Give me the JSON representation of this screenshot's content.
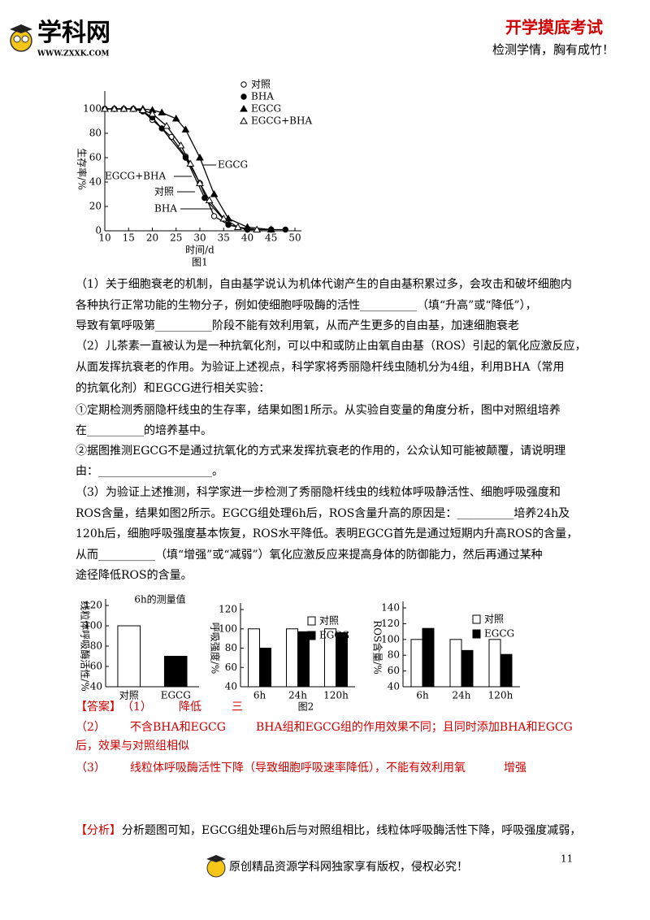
{
  "header": {
    "logo": "学科网",
    "site": "WWW.ZXXK.COM",
    "title": "开学摸底考试",
    "slogan": "检测学情，胸有成竹！"
  },
  "chart_data": [
    {
      "type": "line",
      "xlabel": "时间/d",
      "ylabel": "生存率/%",
      "caption": "图1",
      "xlim": [
        10,
        50
      ],
      "xticks": [
        10,
        15,
        20,
        25,
        30,
        35,
        40,
        45,
        50
      ],
      "ylim": [
        0,
        100
      ],
      "yticks": [
        0,
        20,
        40,
        60,
        80,
        100
      ],
      "series": [
        {
          "name": "对照",
          "marker": "open-circle",
          "color": "#000000",
          "x": [
            10,
            12,
            14,
            16,
            18,
            20,
            24,
            27,
            30,
            33,
            36,
            40,
            45
          ],
          "values": [
            100,
            100,
            100,
            100,
            98,
            91,
            77,
            61,
            39,
            12,
            5,
            1,
            1
          ]
        },
        {
          "name": "BHA",
          "marker": "filled-circle",
          "color": "#000000",
          "x": [
            10,
            12,
            14,
            16,
            18,
            20,
            22,
            27,
            31,
            36,
            40,
            45,
            48
          ],
          "values": [
            100,
            100,
            100,
            100,
            98,
            93,
            84,
            60,
            27,
            5,
            1,
            1,
            1
          ]
        },
        {
          "name": "EGCG",
          "marker": "filled-triangle",
          "color": "#000000",
          "x": [
            10,
            12,
            14,
            16,
            18,
            20,
            22,
            25,
            27,
            30,
            33,
            36,
            40,
            45
          ],
          "values": [
            100,
            100,
            100,
            100,
            100,
            99,
            97,
            92,
            83,
            60,
            30,
            10,
            3,
            1
          ]
        },
        {
          "name": "EGCG+BHA",
          "marker": "open-triangle",
          "color": "#000000",
          "x": [
            10,
            12,
            14,
            16,
            18,
            20,
            23,
            26,
            28,
            30,
            32,
            35,
            38,
            42
          ],
          "values": [
            100,
            100,
            100,
            100,
            99,
            96,
            86,
            70,
            55,
            39,
            25,
            10,
            3,
            1
          ]
        }
      ],
      "annotations": [
        "EGCG",
        "EGCG+BHA",
        "对照",
        "BHA"
      ]
    },
    {
      "type": "bar",
      "title": "6h的测量值",
      "ylabel": "线粒体呼吸酶活性/%",
      "categories": [
        "对照",
        "EGCG"
      ],
      "values": [
        100,
        70
      ],
      "colors": [
        "#ffffff",
        "#000000"
      ],
      "ylim": [
        40,
        120
      ],
      "yticks": [
        40,
        60,
        80,
        100,
        120
      ]
    },
    {
      "type": "bar",
      "ylabel": "呼吸强度/%",
      "caption": "图2",
      "categories": [
        "6h",
        "24h",
        "120h"
      ],
      "series": [
        {
          "name": "对照",
          "color": "#ffffff",
          "values": [
            100,
            100,
            100
          ]
        },
        {
          "name": "EGCG",
          "color": "#000000",
          "values": [
            80,
            97,
            96
          ]
        }
      ],
      "ylim": [
        40,
        120
      ],
      "yticks": [
        40,
        60,
        80,
        100,
        120
      ],
      "legend": "upper right"
    },
    {
      "type": "bar",
      "ylabel": "ROS含量/%",
      "categories": [
        "6h",
        "24h",
        "120h"
      ],
      "series": [
        {
          "name": "对照",
          "color": "#ffffff",
          "values": [
            100,
            100,
            100
          ]
        },
        {
          "name": "EGCG",
          "color": "#000000",
          "values": [
            114,
            86,
            81
          ]
        }
      ],
      "ylim": [
        40,
        140
      ],
      "yticks": [
        40,
        60,
        80,
        100,
        120,
        140
      ],
      "legend": "upper right"
    }
  ],
  "body": {
    "lines": [
      "（1）关于细胞衰老的机制，自由基学说认为机体代谢产生的自由基积累过多，会攻击和破坏细胞内",
      "各种执行正常功能的生物分子，例如使细胞呼吸酶的活性__________（填“升高”或“降低”），",
      "导致有氧呼吸第__________阶段不能有效利用氧，从而产生更多的自由基，加速细胞衰老",
      "（2）儿茶素一直被认为是一种抗氧化剂，可以中和或防止由氧自由基（ROS）引起的氧化应激反应，",
      "从面发挥抗衰老的作用。为验证上述视点，科学家将秀丽隐杆线虫随机分为4组，利用BHA（常用",
      "的抗氧化剂）和EGCG进行相关实验：",
      "①定期检测秀丽隐杆线虫的生存率，结果如图1所示。从实验自变量的角度分析，图中对照组培养",
      "在__________的培养基中。",
      "②据图推测EGCG不是通过抗氧化的方式来发挥抗衰老的作用的，公众认知可能被颠覆，请说明理",
      "由：____________________。",
      "（3）为验证上述推测，科学家进一步检测了秀丽隐杆线虫的线粒体呼吸静活性、细胞呼吸强度和",
      "ROS含量，结果如图2所示。EGCG组处理6h后，ROS含量升高的原因是：__________培养24h及",
      "120h后，细胞呼吸强度基本恢复，ROS水平降低。表明EGCG首先是通过短期内升高ROS的含量，",
      "从而__________（填“增强”或“减弱”）氧化应激反应来提高身体的防御能力，然后再通过某种",
      "途径降低ROS的含量。"
    ]
  },
  "answer": {
    "label": "【答案】",
    "items": [
      {
        "label": "（1）",
        "parts": [
          "降低",
          "三"
        ]
      },
      {
        "label": "（2）",
        "parts": [
          "不含BHA和EGCG",
          "BHA组和EGCG组的作用效果不同；且同时添加BHA和EGCG"
        ],
        "continuation": "后，效果与对照组相似"
      },
      {
        "label": "（3）",
        "parts": [
          "线粒体呼吸酶活性下降（导致细胞呼吸速率降低），不能有效利用氧",
          "增强"
        ]
      }
    ]
  },
  "analysis": {
    "label": "【分析】",
    "text": "分析题图可知，EGCG组处理6h后与对照组相比，线粒体呼吸酶活性下降，呼吸强度减弱，"
  },
  "footer": {
    "text": "原创精品资源学科网独家享有版权，侵权必究！",
    "page": "11"
  }
}
